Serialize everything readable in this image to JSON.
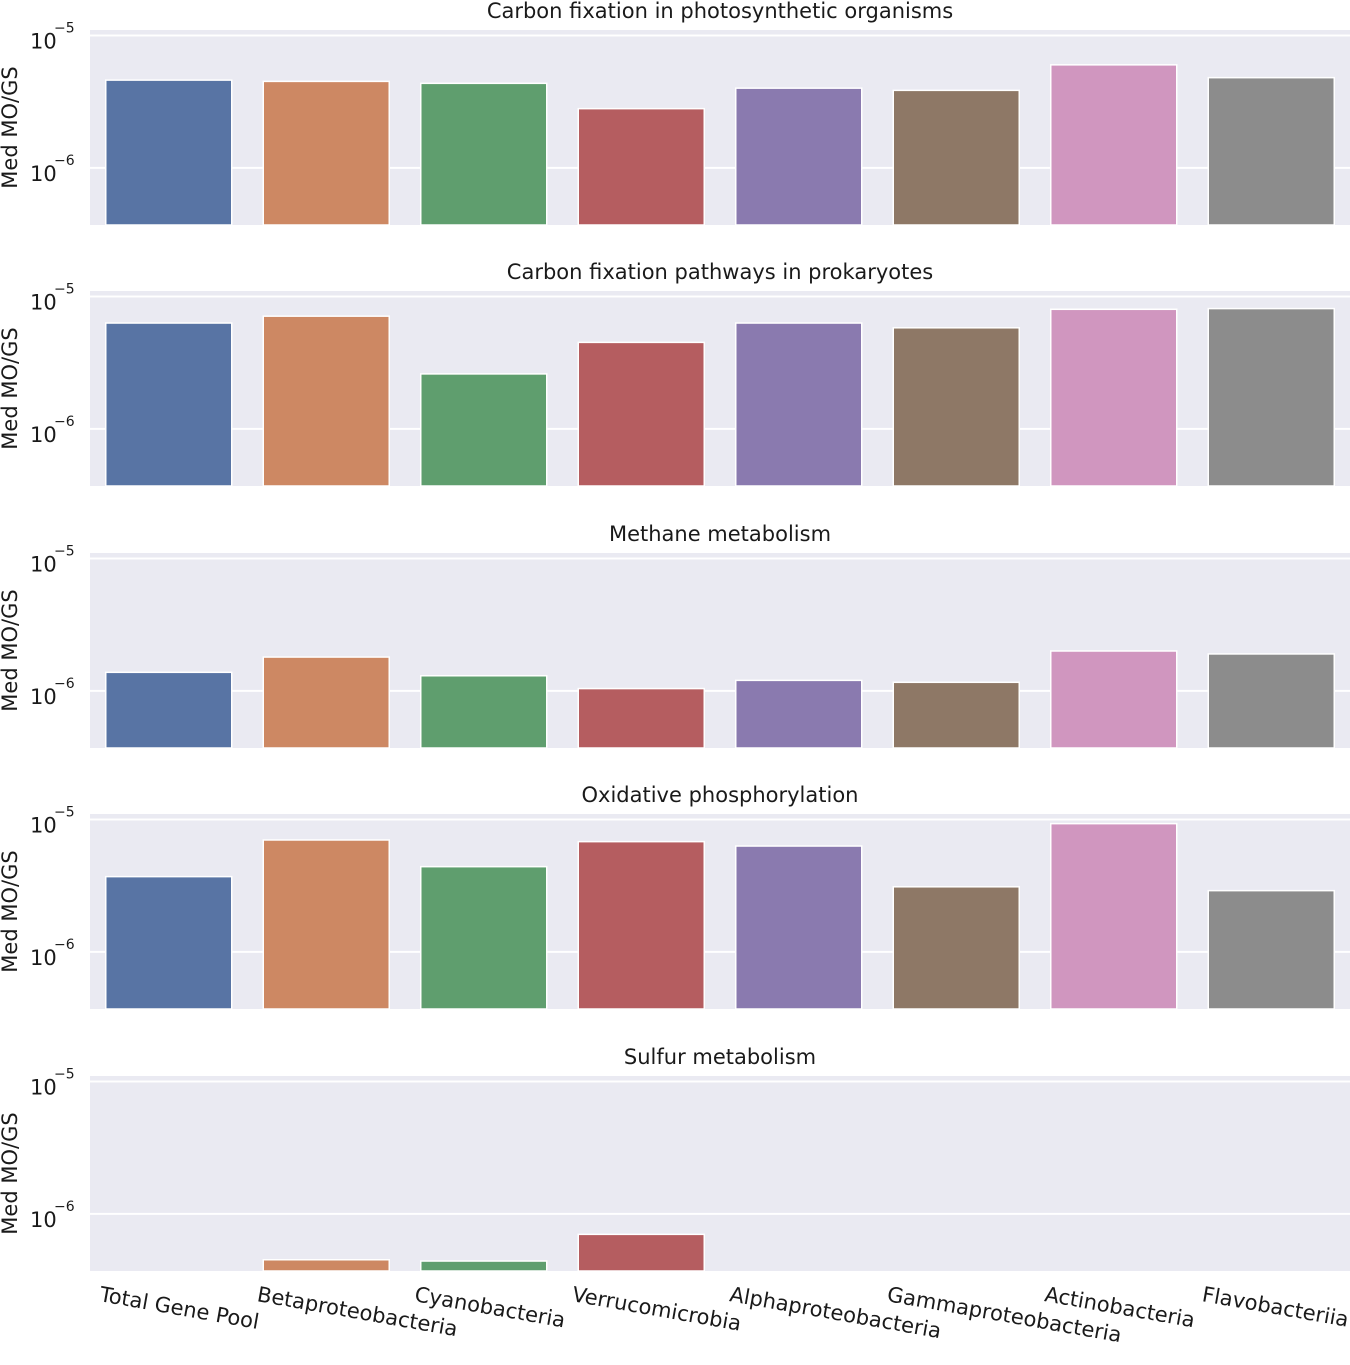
{
  "chart_data": {
    "type": "bar",
    "layout": "5 vertically stacked panels sharing x categories",
    "yscale": "log",
    "ylim": [
      3.7e-07,
      1.1e-05
    ],
    "yticks": [
      {
        "value": 1e-05,
        "base": "10",
        "exp": "−5"
      },
      {
        "value": 1e-06,
        "base": "10",
        "exp": "−6"
      }
    ],
    "ylabel": "Med MO/GS",
    "categories": [
      "Total Gene Pool",
      "Betaproteobacteria",
      "Cyanobacteria",
      "Verrucomicrobia",
      "Alphaproteobacteria",
      "Gammaproteobacteria",
      "Actinobacteria",
      "Flavobacteriia"
    ],
    "colors": [
      "#5874a4",
      "#cd8863",
      "#5f9e6e",
      "#b55d60",
      "#8a7aaf",
      "#8e7866",
      "#d096bf",
      "#8c8c8c"
    ],
    "panels": [
      {
        "title": "Carbon fixation in photosynthetic organisms",
        "values": [
          4.6e-06,
          4.5e-06,
          4.35e-06,
          2.8e-06,
          4e-06,
          3.85e-06,
          6e-06,
          4.8e-06
        ]
      },
      {
        "title": "Carbon fixation pathways in prokaryotes",
        "values": [
          6.3e-06,
          7.1e-06,
          2.6e-06,
          4.5e-06,
          6.3e-06,
          5.8e-06,
          8e-06,
          8.1e-06
        ]
      },
      {
        "title": "Methane metabolism",
        "values": [
          1.38e-06,
          1.8e-06,
          1.3e-06,
          1.04e-06,
          1.2e-06,
          1.16e-06,
          2e-06,
          1.9e-06
        ]
      },
      {
        "title": "Oxidative phosphorylation",
        "values": [
          3.7e-06,
          7e-06,
          4.4e-06,
          6.8e-06,
          6.3e-06,
          3.1e-06,
          9.3e-06,
          2.9e-06
        ]
      },
      {
        "title": "Sulfur metabolism",
        "values": [
          null,
          4.5e-07,
          4.4e-07,
          7e-07,
          null,
          null,
          null,
          null
        ]
      }
    ],
    "style": {
      "background": "#ffffff",
      "panel_background": "#eaeaf2",
      "grid_color": "#ffffff",
      "grid": true,
      "legend": "none"
    }
  }
}
